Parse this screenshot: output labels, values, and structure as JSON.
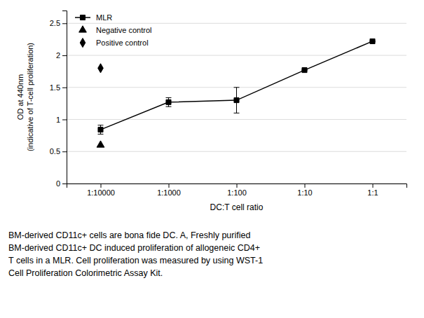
{
  "chart_data": {
    "type": "line",
    "x_label": "DC:T cell ratio",
    "y_label": "OD at 440nm\n(indicative of T-cell proliferation)",
    "categories": [
      "1:10000",
      "1:1000",
      "1:100",
      "1:10",
      "1:1"
    ],
    "series": [
      {
        "name": "MLR",
        "type": "line",
        "marker": "square",
        "color": "black",
        "values": [
          0.84,
          1.27,
          1.3,
          1.77,
          2.22
        ],
        "errors": [
          0.07,
          0.07,
          0.2,
          0.0,
          0.0
        ]
      },
      {
        "name": "Negative control",
        "type": "scatter",
        "marker": "triangle-up",
        "color": "black",
        "values": [
          0.6,
          null,
          null,
          null,
          null
        ]
      },
      {
        "name": "Positive control",
        "type": "scatter",
        "marker": "diamond",
        "color": "black",
        "values": [
          1.8,
          null,
          null,
          null,
          null
        ]
      }
    ],
    "ylim": [
      0,
      2.7
    ],
    "yticks": [
      0,
      0.5,
      1,
      1.5,
      2,
      2.5
    ],
    "grid": true,
    "legend": "upper left",
    "annotations": [
      "BM-derived CD11c+  cells are bona fide DC. A, Freshly purified",
      "BM-derived CD11c+  DC induced proliferation of allogeneic CD4+",
      "T cells in a MLR. Cell proliferation was measured by using WST-1",
      "Cell Proliferation Colorimetric Assay Kit."
    ]
  }
}
